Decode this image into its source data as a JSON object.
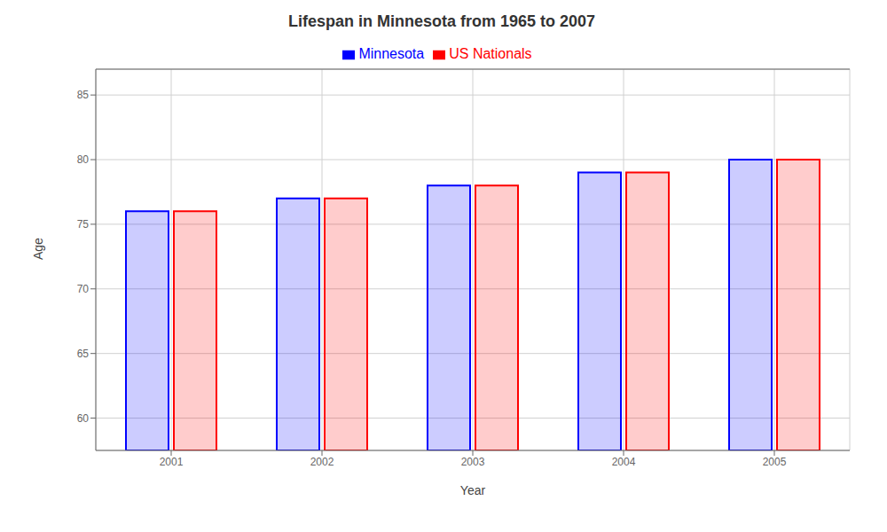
{
  "chart_data": {
    "type": "bar",
    "title": "Lifespan in Minnesota from 1965 to 2007",
    "x_label": "Year",
    "y_label": "Age",
    "categories": [
      "2001",
      "2002",
      "2003",
      "2004",
      "2005"
    ],
    "series": [
      {
        "name": "Minnesota",
        "color": "#0000ff",
        "values": [
          76,
          77,
          78,
          79,
          80
        ]
      },
      {
        "name": "US Nationals",
        "color": "#ff0000",
        "values": [
          76,
          77,
          78,
          79,
          80
        ]
      }
    ],
    "ylim": [
      57.5,
      87
    ],
    "yticks": [
      60,
      65,
      70,
      75,
      80,
      85
    ],
    "grid": true,
    "legend": "top"
  }
}
